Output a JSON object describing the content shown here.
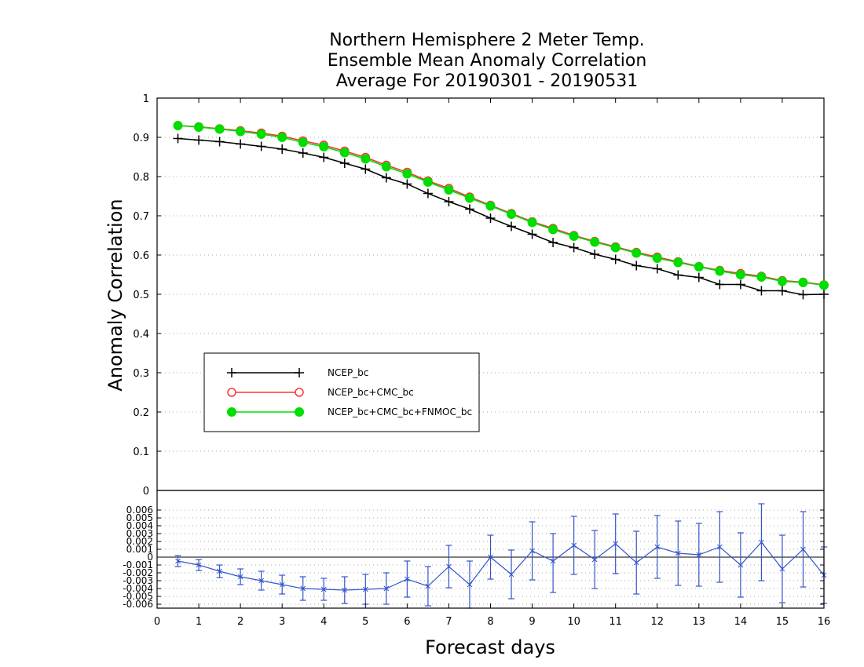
{
  "chart_data": [
    {
      "type": "line",
      "title": [
        "Northern Hemisphere 2 Meter Temp.",
        "Ensemble Mean Anomaly Correlation",
        "Average For 20190301 - 20190531"
      ],
      "xlabel": "Forecast days",
      "ylabel": "Anomaly Correlation",
      "xlim": [
        0,
        16
      ],
      "ylim": [
        0,
        1
      ],
      "x_ticks": [
        "0",
        "1",
        "2",
        "3",
        "4",
        "5",
        "6",
        "7",
        "8",
        "9",
        "10",
        "11",
        "12",
        "13",
        "14",
        "15",
        "16"
      ],
      "y_ticks": [
        "0",
        "0.1",
        "0.2",
        "0.3",
        "0.4",
        "0.5",
        "0.6",
        "0.7",
        "0.8",
        "0.9",
        "1"
      ],
      "grid": "horizontal dotted",
      "legend": "lower-left",
      "x": [
        0.5,
        1,
        1.5,
        2,
        2.5,
        3,
        3.5,
        4,
        4.5,
        5,
        5.5,
        6,
        6.5,
        7,
        7.5,
        8,
        8.5,
        9,
        9.5,
        10,
        10.5,
        11,
        11.5,
        12,
        12.5,
        13,
        13.5,
        14,
        14.5,
        15,
        15.5,
        16
      ],
      "series": [
        {
          "name": "NCEP_bc",
          "color": "#000000",
          "marker": "plus",
          "values": [
            0.897,
            0.893,
            0.889,
            0.883,
            0.877,
            0.87,
            0.86,
            0.849,
            0.834,
            0.819,
            0.797,
            0.781,
            0.757,
            0.736,
            0.717,
            0.694,
            0.673,
            0.653,
            0.632,
            0.619,
            0.602,
            0.589,
            0.573,
            0.565,
            0.549,
            0.543,
            0.525,
            0.525,
            0.509,
            0.509,
            0.499,
            0.5
          ]
        },
        {
          "name": "NCEP_bc+CMC_bc",
          "color": "#ff3333",
          "marker": "open-circle",
          "values": [
            0.93,
            0.927,
            0.922,
            0.917,
            0.911,
            0.903,
            0.891,
            0.88,
            0.865,
            0.849,
            0.829,
            0.811,
            0.789,
            0.77,
            0.748,
            0.727,
            0.706,
            0.685,
            0.668,
            0.65,
            0.635,
            0.621,
            0.607,
            0.595,
            0.583,
            0.571,
            0.561,
            0.553,
            0.546,
            0.535,
            0.531,
            0.524
          ]
        },
        {
          "name": "NCEP_bc+CMC_bc+FNMOC_bc",
          "color": "#00dd00",
          "marker": "filled-circle",
          "values": [
            0.93,
            0.926,
            0.921,
            0.915,
            0.908,
            0.9,
            0.887,
            0.876,
            0.861,
            0.845,
            0.825,
            0.807,
            0.786,
            0.766,
            0.745,
            0.725,
            0.704,
            0.683,
            0.665,
            0.648,
            0.633,
            0.619,
            0.605,
            0.592,
            0.581,
            0.57,
            0.559,
            0.55,
            0.544,
            0.533,
            0.53,
            0.523
          ]
        }
      ]
    },
    {
      "type": "line",
      "description_panel": "difference",
      "xlim": [
        0,
        16
      ],
      "ylim": [
        -0.0065,
        0.0085
      ],
      "y_ticks": [
        "-0.006",
        "-0.005",
        "-0.004",
        "-0.003",
        "-0.002",
        "-0.001",
        "0",
        "0.001",
        "0.002",
        "0.003",
        "0.004",
        "0.005",
        "0.006"
      ],
      "grid": "horizontal dotted",
      "color": "#3355cc",
      "x": [
        0.5,
        1,
        1.5,
        2,
        2.5,
        3,
        3.5,
        4,
        4.5,
        5,
        5.5,
        6,
        6.5,
        7,
        7.5,
        8,
        8.5,
        9,
        9.5,
        10,
        10.5,
        11,
        11.5,
        12,
        12.5,
        13,
        13.5,
        14,
        14.5,
        15,
        15.5,
        16
      ],
      "values": [
        -0.0005,
        -0.001,
        -0.0018,
        -0.0025,
        -0.003,
        -0.0035,
        -0.004,
        -0.0041,
        -0.0042,
        -0.0041,
        -0.004,
        -0.0028,
        -0.0037,
        -0.0012,
        -0.0035,
        0,
        -0.0022,
        0.0008,
        -0.0005,
        0.0015,
        -0.0003,
        0.0017,
        -0.0007,
        0.0013,
        0.0005,
        0.0003,
        0.0013,
        -0.001,
        0.0019,
        -0.0015,
        0.001,
        -0.0023
      ],
      "upper": [
        0.0002,
        -0.0003,
        -0.001,
        -0.0015,
        -0.0018,
        -0.0023,
        -0.0025,
        -0.0027,
        -0.0025,
        -0.0022,
        -0.002,
        -0.0005,
        -0.0012,
        0.0015,
        -0.0005,
        0.0028,
        0.0009,
        0.0045,
        0.003,
        0.0052,
        0.0034,
        0.0055,
        0.0033,
        0.0053,
        0.0046,
        0.0043,
        0.0058,
        0.0031,
        0.0068,
        0.0028,
        0.0058,
        0.0013
      ],
      "lower": [
        -0.0012,
        -0.0017,
        -0.0026,
        -0.0035,
        -0.0042,
        -0.0047,
        -0.0055,
        -0.0055,
        -0.0059,
        -0.006,
        -0.006,
        -0.0051,
        -0.0062,
        -0.0039,
        -0.0065,
        -0.0028,
        -0.0053,
        -0.0029,
        -0.0045,
        -0.0022,
        -0.004,
        -0.0021,
        -0.0047,
        -0.0027,
        -0.0036,
        -0.0037,
        -0.0032,
        -0.0051,
        -0.003,
        -0.0058,
        -0.0038,
        -0.0059
      ]
    }
  ]
}
